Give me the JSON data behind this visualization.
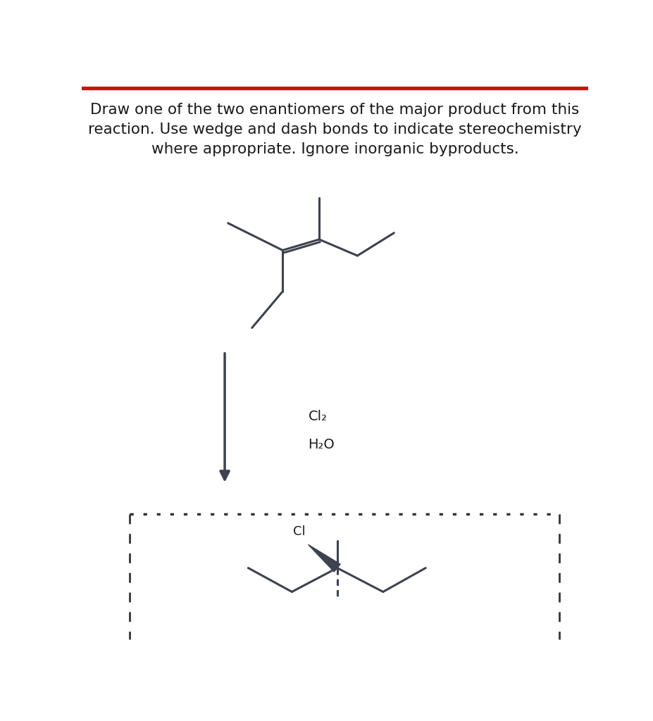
{
  "title_text": "Draw one of the two enantiomers of the major product from this\nreaction. Use wedge and dash bonds to indicate stereochemistry\nwhere appropriate. Ignore inorganic byproducts.",
  "reagent1": "Cl₂",
  "reagent2": "H₂O",
  "background_color": "#ffffff",
  "line_color": "#3d424e",
  "text_color": "#1a1a1a",
  "top_bar_color": "#cc1111",
  "font_size_title": 15.5,
  "font_size_reagents": 14
}
